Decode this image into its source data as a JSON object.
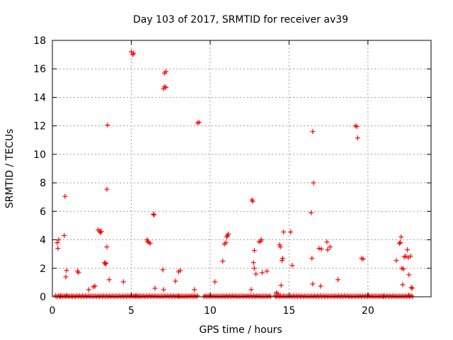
{
  "chart_data": {
    "type": "scatter",
    "title": "Day 103 of 2017, SRMTID for receiver av39",
    "xlabel": "GPS time / hours",
    "ylabel": "SRMTID / TECUs",
    "xlim": [
      0,
      24
    ],
    "ylim": [
      0,
      18
    ],
    "xticks": [
      "0",
      "5",
      "10",
      "15",
      "20"
    ],
    "yticks": [
      "0",
      "2",
      "4",
      "6",
      "8",
      "10",
      "12",
      "14",
      "16",
      "18"
    ],
    "grid": true,
    "marker": "plus",
    "marker_color": "#ff0000",
    "points": [
      [
        0.3,
        3.8
      ],
      [
        0.35,
        3.4
      ],
      [
        0.4,
        4.0
      ],
      [
        0.75,
        4.3
      ],
      [
        0.8,
        7.05
      ],
      [
        0.85,
        1.4
      ],
      [
        0.9,
        1.85
      ],
      [
        0.5,
        0.05
      ],
      [
        0.9,
        0.1
      ],
      [
        1.2,
        0.05
      ],
      [
        1.6,
        1.8
      ],
      [
        1.65,
        1.7
      ],
      [
        2.3,
        0.5
      ],
      [
        2.6,
        0.7
      ],
      [
        2.7,
        0.75
      ],
      [
        2.9,
        4.7
      ],
      [
        3.0,
        4.6
      ],
      [
        3.05,
        4.5
      ],
      [
        3.1,
        4.6
      ],
      [
        3.3,
        2.4
      ],
      [
        3.35,
        2.3
      ],
      [
        3.4,
        2.35
      ],
      [
        3.45,
        3.5
      ],
      [
        3.5,
        12.05
      ],
      [
        3.45,
        7.55
      ],
      [
        3.6,
        1.2
      ],
      [
        4.5,
        1.05
      ],
      [
        5.0,
        17.2
      ],
      [
        5.1,
        17.0
      ],
      [
        5.15,
        17.1
      ],
      [
        5.3,
        0.1
      ],
      [
        5.5,
        0.05
      ],
      [
        6.0,
        4.0
      ],
      [
        6.05,
        3.9
      ],
      [
        6.1,
        3.8
      ],
      [
        6.2,
        3.75
      ],
      [
        6.4,
        5.8
      ],
      [
        6.45,
        5.75
      ],
      [
        6.5,
        0.6
      ],
      [
        7.0,
        1.9
      ],
      [
        7.1,
        15.7
      ],
      [
        7.2,
        15.8
      ],
      [
        7.05,
        14.6
      ],
      [
        7.1,
        14.75
      ],
      [
        7.2,
        14.7
      ],
      [
        7.05,
        0.5
      ],
      [
        7.8,
        1.1
      ],
      [
        8.0,
        1.75
      ],
      [
        8.1,
        1.85
      ],
      [
        8.0,
        0.05
      ],
      [
        9.0,
        0.5
      ],
      [
        9.2,
        12.2
      ],
      [
        9.3,
        12.25
      ],
      [
        10.3,
        1.05
      ],
      [
        10.8,
        2.5
      ],
      [
        10.9,
        3.7
      ],
      [
        11.0,
        3.8
      ],
      [
        11.05,
        4.2
      ],
      [
        11.1,
        4.3
      ],
      [
        11.15,
        4.4
      ],
      [
        12.6,
        0.5
      ],
      [
        12.65,
        6.8
      ],
      [
        12.7,
        6.7
      ],
      [
        12.75,
        2.4
      ],
      [
        12.8,
        3.25
      ],
      [
        12.8,
        2.0
      ],
      [
        12.9,
        1.6
      ],
      [
        13.1,
        3.85
      ],
      [
        13.2,
        3.9
      ],
      [
        13.25,
        4.0
      ],
      [
        13.3,
        1.7
      ],
      [
        13.6,
        1.8
      ],
      [
        14.2,
        0.3
      ],
      [
        14.3,
        0.2
      ],
      [
        14.4,
        3.65
      ],
      [
        14.45,
        3.5
      ],
      [
        14.5,
        0.8
      ],
      [
        14.55,
        2.55
      ],
      [
        14.6,
        2.7
      ],
      [
        14.65,
        4.55
      ],
      [
        15.1,
        4.55
      ],
      [
        15.2,
        2.2
      ],
      [
        16.4,
        5.9
      ],
      [
        16.45,
        2.7
      ],
      [
        16.5,
        0.9
      ],
      [
        16.5,
        11.6
      ],
      [
        16.55,
        8.0
      ],
      [
        16.9,
        3.4
      ],
      [
        17.0,
        0.75
      ],
      [
        17.05,
        3.35
      ],
      [
        17.4,
        3.85
      ],
      [
        17.45,
        3.3
      ],
      [
        17.6,
        3.5
      ],
      [
        18.1,
        1.2
      ],
      [
        19.2,
        12.0
      ],
      [
        19.3,
        11.95
      ],
      [
        19.35,
        11.15
      ],
      [
        19.6,
        2.7
      ],
      [
        19.7,
        2.65
      ],
      [
        20.0,
        0.1
      ],
      [
        21.0,
        0.05
      ],
      [
        21.8,
        2.55
      ],
      [
        22.0,
        3.75
      ],
      [
        22.05,
        3.8
      ],
      [
        22.1,
        4.2
      ],
      [
        22.15,
        2.0
      ],
      [
        22.2,
        0.85
      ],
      [
        22.25,
        1.95
      ],
      [
        22.3,
        2.8
      ],
      [
        22.4,
        2.85
      ],
      [
        22.5,
        3.3
      ],
      [
        22.55,
        2.75
      ],
      [
        22.6,
        1.55
      ],
      [
        22.7,
        2.85
      ],
      [
        22.75,
        0.65
      ],
      [
        22.8,
        0.6
      ],
      [
        22.6,
        0.1
      ]
    ]
  }
}
